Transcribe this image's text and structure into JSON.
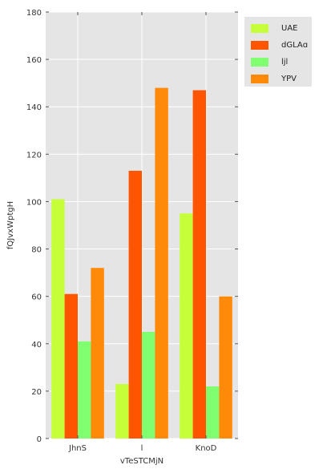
{
  "chart_data": {
    "type": "bar",
    "title": "",
    "xlabel": "vTeSTCMjN",
    "ylabel": "fQJvxWptgH",
    "categories": [
      "JhnS",
      "l",
      "KnoD"
    ],
    "series": [
      {
        "name": "UAE",
        "values": [
          101,
          23,
          95
        ],
        "color": "#c6ff3a"
      },
      {
        "name": "dGLAɑ",
        "values": [
          61,
          113,
          147
        ],
        "color": "#ff5500"
      },
      {
        "name": "ljl",
        "values": [
          41,
          45,
          22
        ],
        "color": "#80ff70"
      },
      {
        "name": "YPV",
        "values": [
          72,
          148,
          60
        ],
        "color": "#ff8a0a"
      }
    ],
    "ylim": [
      0,
      180
    ],
    "yticks": [
      0,
      20,
      40,
      60,
      80,
      100,
      120,
      140,
      160,
      180
    ],
    "grid": true,
    "legend_position": "outside-top-right",
    "style": {
      "plot_background": "#e5e5e5",
      "grid_color": "#ffffff"
    }
  }
}
